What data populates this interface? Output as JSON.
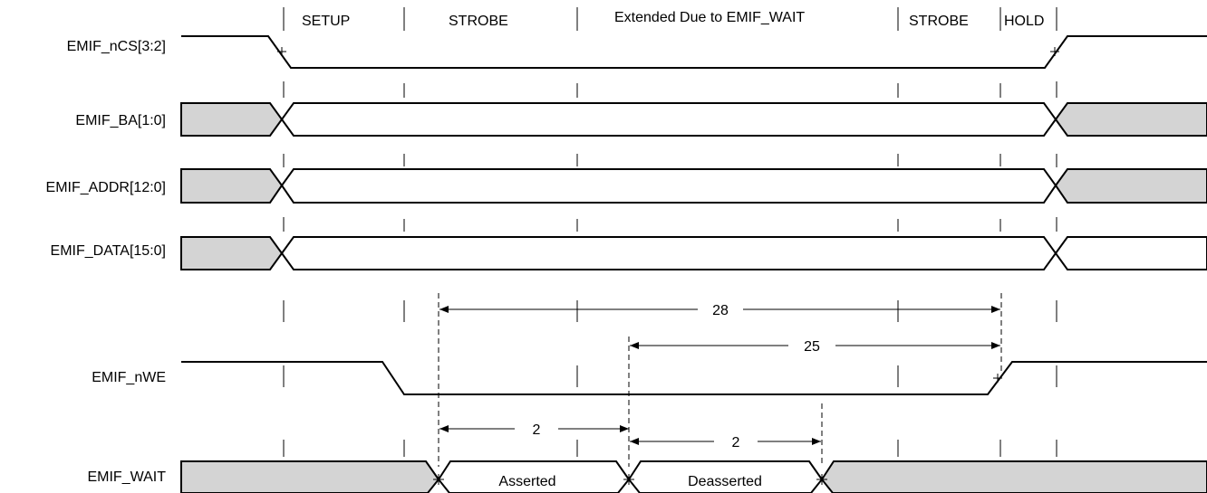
{
  "phases": {
    "setup": "SETUP",
    "strobe1": "STROBE",
    "extended": "Extended Due to EMIF_WAIT",
    "strobe2": "STROBE",
    "hold": "HOLD"
  },
  "signals": {
    "ncs": "EMIF_nCS[3:2]",
    "ba": "EMIF_BA[1:0]",
    "addr": "EMIF_ADDR[12:0]",
    "data": "EMIF_DATA[15:0]",
    "nwe": "EMIF_nWE",
    "wait": "EMIF_WAIT"
  },
  "dimensions": {
    "d28": "28",
    "d25": "25",
    "d2a": "2",
    "d2b": "2"
  },
  "wait_states": {
    "asserted": "Asserted",
    "deasserted": "Deasserted"
  },
  "colors": {
    "bus_inactive": "#d4d4d4",
    "line": "#000000",
    "background": "#ffffff"
  }
}
